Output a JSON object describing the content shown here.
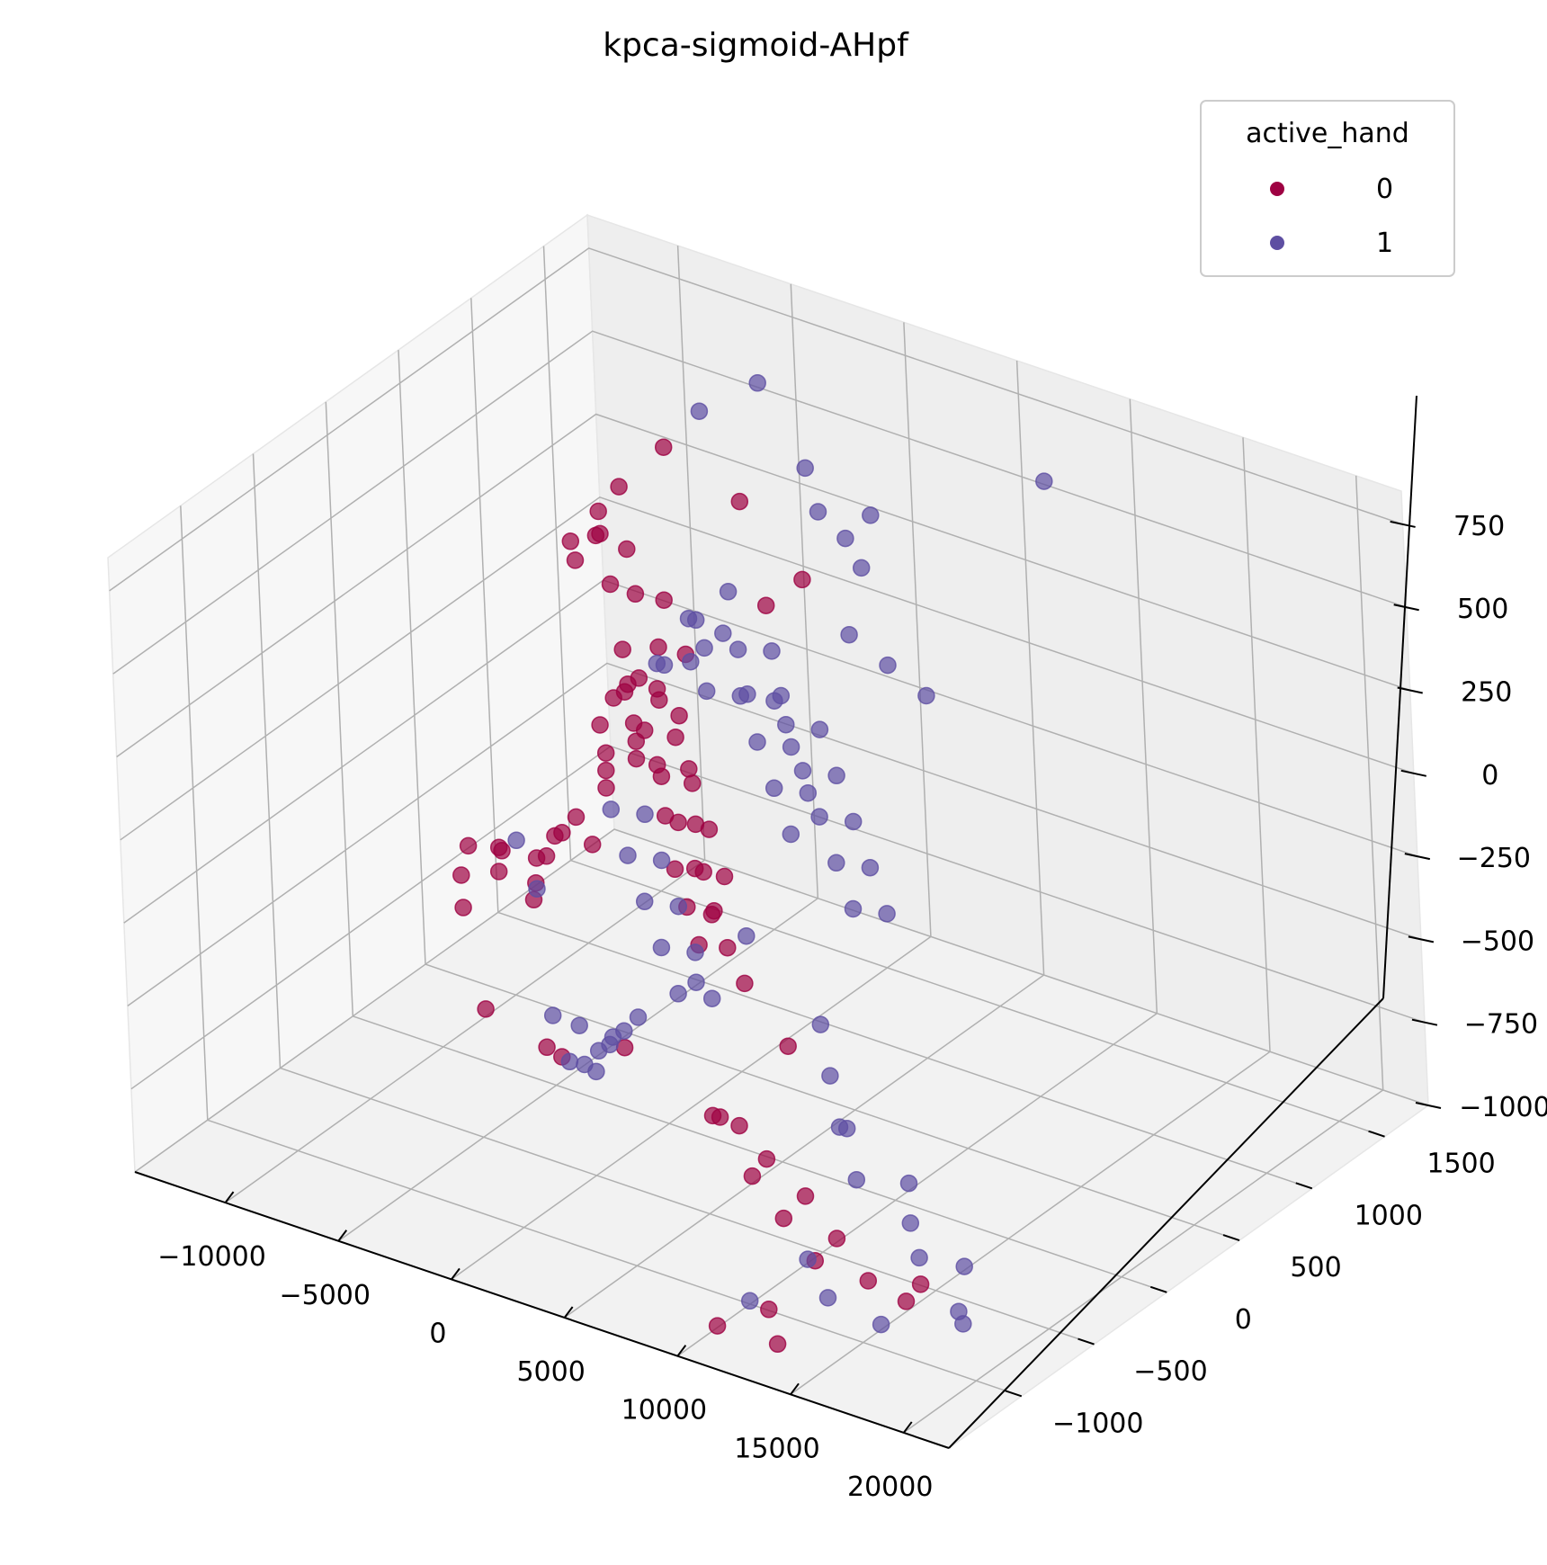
{
  "chart_data": {
    "type": "scatter",
    "title": "kpca-sigmoid-AHpf",
    "legend": {
      "title": "active_hand",
      "placement": "top-right",
      "entries": [
        {
          "label": "0",
          "color": "#9e0142"
        },
        {
          "label": "1",
          "color": "#5e4fa2"
        }
      ]
    },
    "grid": true,
    "x_axis": {
      "ticks": [
        -10000,
        -5000,
        0,
        5000,
        10000,
        15000,
        20000
      ],
      "tick_labels": [
        "−10000",
        "−5000",
        "0",
        "5000",
        "10000",
        "15000",
        "20000"
      ],
      "range": [
        -14000,
        22000
      ]
    },
    "y_axis": {
      "ticks": [
        -1000,
        -500,
        0,
        500,
        1000,
        1500
      ],
      "tick_labels": [
        "−1000",
        "−500",
        "0",
        "500",
        "1000",
        "1500"
      ],
      "range": [
        -1500,
        1800
      ]
    },
    "z_axis": {
      "ticks": [
        -1000,
        -750,
        -500,
        -250,
        0,
        250,
        500,
        750
      ],
      "tick_labels": [
        "−1000",
        "−750",
        "−500",
        "−250",
        "0",
        "250",
        "500",
        "750"
      ],
      "range": [
        -1000,
        850
      ]
    },
    "series": [
      {
        "name": "0",
        "color": "#9e0142",
        "points": [
          [
            -10500,
            300,
            -500
          ],
          [
            -10200,
            200,
            -550
          ],
          [
            -9800,
            400,
            -520
          ],
          [
            -9500,
            100,
            -600
          ],
          [
            -9000,
            300,
            -480
          ],
          [
            -8800,
            500,
            -560
          ],
          [
            -8500,
            200,
            -500
          ],
          [
            -8000,
            350,
            -620
          ],
          [
            -7600,
            450,
            -450
          ],
          [
            -7200,
            250,
            -520
          ],
          [
            -6800,
            380,
            -400
          ],
          [
            -6400,
            520,
            -470
          ],
          [
            -6000,
            150,
            -380
          ],
          [
            -5600,
            300,
            -300
          ],
          [
            -5200,
            450,
            -250
          ],
          [
            -4800,
            600,
            -200
          ],
          [
            -4500,
            350,
            -150
          ],
          [
            -4100,
            500,
            -100
          ],
          [
            -3800,
            250,
            -50
          ],
          [
            -3500,
            400,
            0
          ],
          [
            -8500,
            800,
            250
          ],
          [
            -8200,
            900,
            300
          ],
          [
            -8000,
            700,
            350
          ],
          [
            -7700,
            850,
            400
          ],
          [
            -7400,
            950,
            450
          ],
          [
            -7000,
            750,
            380
          ],
          [
            -6700,
            880,
            300
          ],
          [
            -6300,
            700,
            260
          ],
          [
            -6000,
            820,
            200
          ],
          [
            -5600,
            950,
            150
          ],
          [
            -5200,
            600,
            120
          ],
          [
            -4800,
            780,
            80
          ],
          [
            -4400,
            900,
            30
          ],
          [
            -4000,
            650,
            -20
          ],
          [
            -3600,
            720,
            -80
          ],
          [
            -3200,
            500,
            -150
          ],
          [
            -2800,
            650,
            -200
          ],
          [
            -2400,
            420,
            -260
          ],
          [
            -2000,
            560,
            -320
          ],
          [
            -1600,
            350,
            -380
          ],
          [
            -1200,
            480,
            -420
          ],
          [
            -800,
            300,
            -460
          ],
          [
            -400,
            420,
            -500
          ],
          [
            0,
            250,
            -540
          ],
          [
            400,
            380,
            -580
          ],
          [
            -3000,
            100,
            100
          ],
          [
            -2500,
            200,
            180
          ],
          [
            -2000,
            50,
            220
          ],
          [
            -1500,
            150,
            260
          ],
          [
            -1000,
            0,
            300
          ],
          [
            -500,
            120,
            260
          ],
          [
            0,
            -50,
            200
          ],
          [
            500,
            80,
            150
          ],
          [
            1000,
            -100,
            100
          ],
          [
            1500,
            30,
            50
          ],
          [
            2000,
            -150,
            0
          ],
          [
            2500,
            -20,
            -50
          ],
          [
            3000,
            -200,
            -100
          ],
          [
            3500,
            -80,
            -150
          ],
          [
            4000,
            -250,
            -200
          ],
          [
            -6000,
            -300,
            -700
          ],
          [
            -4000,
            -200,
            -800
          ],
          [
            -2000,
            -400,
            -720
          ],
          [
            500,
            -350,
            -650
          ],
          [
            -7000,
            1200,
            500
          ],
          [
            6000,
            -600,
            -650
          ],
          [
            6500,
            -500,
            -700
          ],
          [
            7000,
            -700,
            -600
          ],
          [
            8000,
            -550,
            -750
          ],
          [
            9000,
            -800,
            -700
          ],
          [
            10000,
            -600,
            -800
          ],
          [
            11000,
            -900,
            -750
          ],
          [
            12000,
            -700,
            -850
          ],
          [
            13000,
            -1000,
            -800
          ],
          [
            14000,
            -800,
            -900
          ],
          [
            15000,
            -600,
            -950
          ],
          [
            16000,
            -850,
            -900
          ],
          [
            11500,
            -1100,
            -950
          ],
          [
            12500,
            -1200,
            -1000
          ],
          [
            10500,
            -1300,
            -960
          ],
          [
            2000,
            500,
            450
          ],
          [
            3000,
            600,
            520
          ],
          [
            -1000,
            800,
            600
          ],
          [
            5000,
            -200,
            -400
          ],
          [
            7500,
            -300,
            -500
          ]
        ]
      },
      {
        "name": "1",
        "color": "#5e4fa2",
        "points": [
          [
            -1000,
            200,
            300
          ],
          [
            -500,
            350,
            400
          ],
          [
            0,
            100,
            350
          ],
          [
            500,
            250,
            450
          ],
          [
            1000,
            400,
            500
          ],
          [
            1500,
            150,
            420
          ],
          [
            2000,
            300,
            380
          ],
          [
            2500,
            450,
            340
          ],
          [
            3000,
            200,
            300
          ],
          [
            3500,
            350,
            260
          ],
          [
            -1500,
            500,
            200
          ],
          [
            -1000,
            650,
            250
          ],
          [
            -500,
            450,
            150
          ],
          [
            0,
            600,
            100
          ],
          [
            500,
            750,
            50
          ],
          [
            1000,
            550,
            0
          ],
          [
            1500,
            700,
            -50
          ],
          [
            2000,
            500,
            -100
          ],
          [
            2500,
            650,
            -150
          ],
          [
            3000,
            450,
            -200
          ],
          [
            -2000,
            0,
            -100
          ],
          [
            -1500,
            150,
            -150
          ],
          [
            -1000,
            -50,
            -200
          ],
          [
            -500,
            100,
            -250
          ],
          [
            0,
            -100,
            -300
          ],
          [
            500,
            50,
            -350
          ],
          [
            1000,
            -150,
            -400
          ],
          [
            1500,
            0,
            -450
          ],
          [
            2000,
            -200,
            -500
          ],
          [
            2500,
            -50,
            -550
          ],
          [
            4000,
            300,
            200
          ],
          [
            4500,
            450,
            150
          ],
          [
            5000,
            250,
            100
          ],
          [
            5500,
            400,
            50
          ],
          [
            6000,
            200,
            0
          ],
          [
            6500,
            350,
            -50
          ],
          [
            7000,
            150,
            -100
          ],
          [
            7500,
            300,
            -150
          ],
          [
            8000,
            100,
            -200
          ],
          [
            8500,
            250,
            -250
          ],
          [
            3000,
            900,
            550
          ],
          [
            3500,
            1000,
            600
          ],
          [
            2500,
            800,
            650
          ],
          [
            4000,
            850,
            500
          ],
          [
            1000,
            950,
            700
          ],
          [
            -3000,
            -300,
            -650
          ],
          [
            -2500,
            -200,
            -700
          ],
          [
            -2000,
            -350,
            -750
          ],
          [
            -1500,
            -250,
            -800
          ],
          [
            -1000,
            -400,
            -720
          ],
          [
            -500,
            -300,
            -680
          ],
          [
            0,
            -450,
            -640
          ],
          [
            500,
            -350,
            -600
          ],
          [
            1000,
            -500,
            -560
          ],
          [
            1500,
            -400,
            -520
          ],
          [
            9000,
            -300,
            -400
          ],
          [
            10000,
            -400,
            -500
          ],
          [
            11000,
            -500,
            -600
          ],
          [
            12000,
            -600,
            -550
          ],
          [
            13000,
            -700,
            -650
          ],
          [
            14000,
            -500,
            -700
          ],
          [
            15000,
            -650,
            -750
          ],
          [
            16000,
            -750,
            -800
          ],
          [
            17000,
            -600,
            -850
          ],
          [
            18000,
            -800,
            -900
          ],
          [
            12000,
            -900,
            -850
          ],
          [
            13500,
            -1000,
            -900
          ],
          [
            15500,
            -950,
            -950
          ],
          [
            17500,
            -700,
            -980
          ],
          [
            11000,
            -1150,
            -920
          ],
          [
            -6000,
            1300,
            600
          ],
          [
            -4000,
            1400,
            700
          ],
          [
            8000,
            1500,
            650
          ],
          [
            -9000,
            400,
            -480
          ],
          [
            -7500,
            300,
            -560
          ],
          [
            5000,
            600,
            400
          ],
          [
            6000,
            700,
            300
          ],
          [
            7000,
            800,
            200
          ],
          [
            4500,
            -100,
            -300
          ],
          [
            3500,
            -300,
            -400
          ]
        ]
      }
    ]
  }
}
